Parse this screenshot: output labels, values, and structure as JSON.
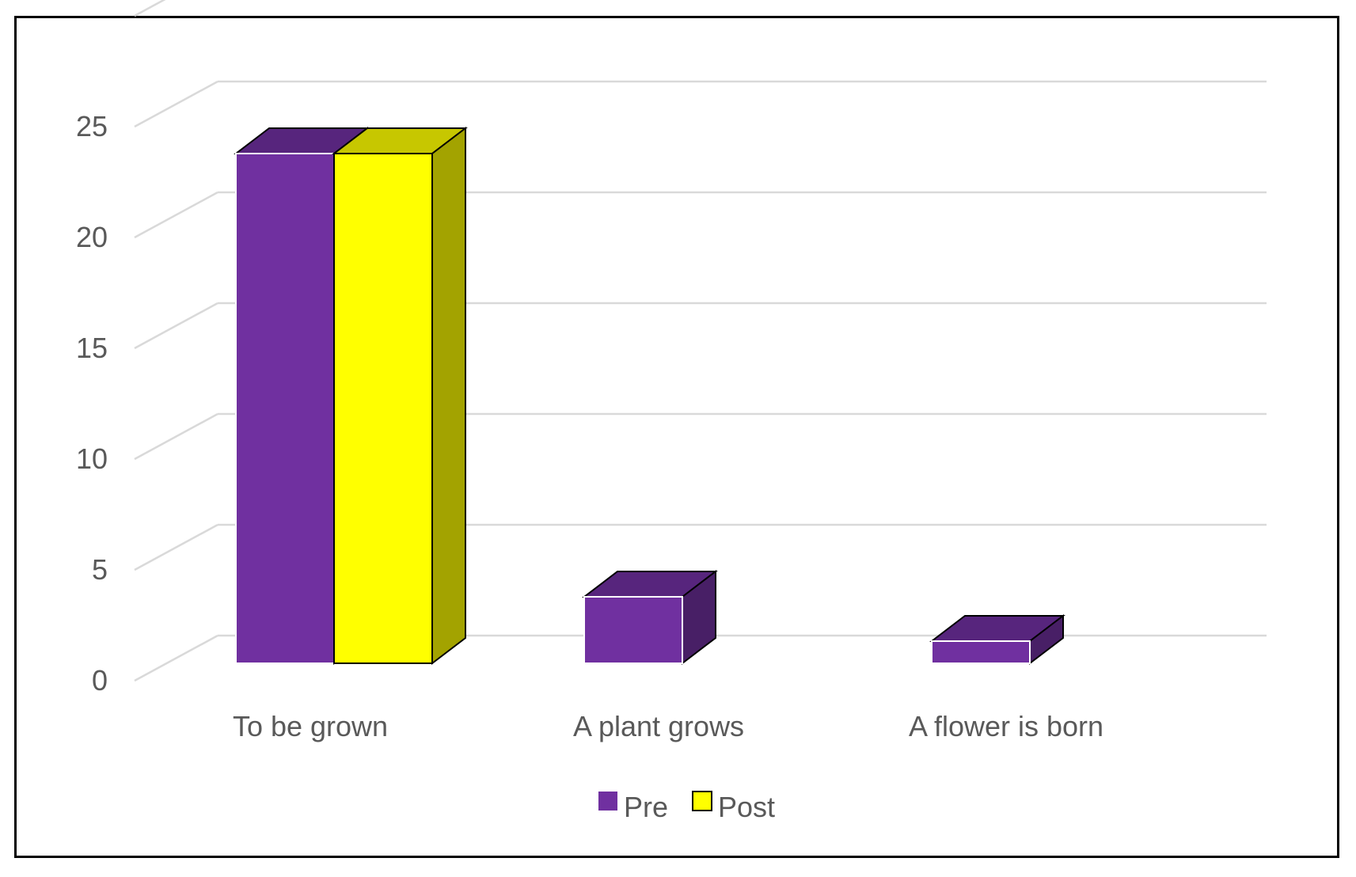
{
  "chart_data": {
    "type": "bar",
    "style": "3d-clustered-column",
    "categories": [
      "To be grown",
      "A plant grows",
      "A flower is born"
    ],
    "series": [
      {
        "name": "Pre",
        "values": [
          23,
          3,
          1
        ],
        "color": "#7030A0"
      },
      {
        "name": "Post",
        "values": [
          23,
          0,
          0
        ],
        "color": "#FFFF00"
      }
    ],
    "ylim": [
      0,
      25
    ],
    "yticks": [
      0,
      5,
      10,
      15,
      20,
      25
    ],
    "grid": true,
    "legend_position": "bottom",
    "title": "",
    "xlabel": "",
    "ylabel": ""
  }
}
